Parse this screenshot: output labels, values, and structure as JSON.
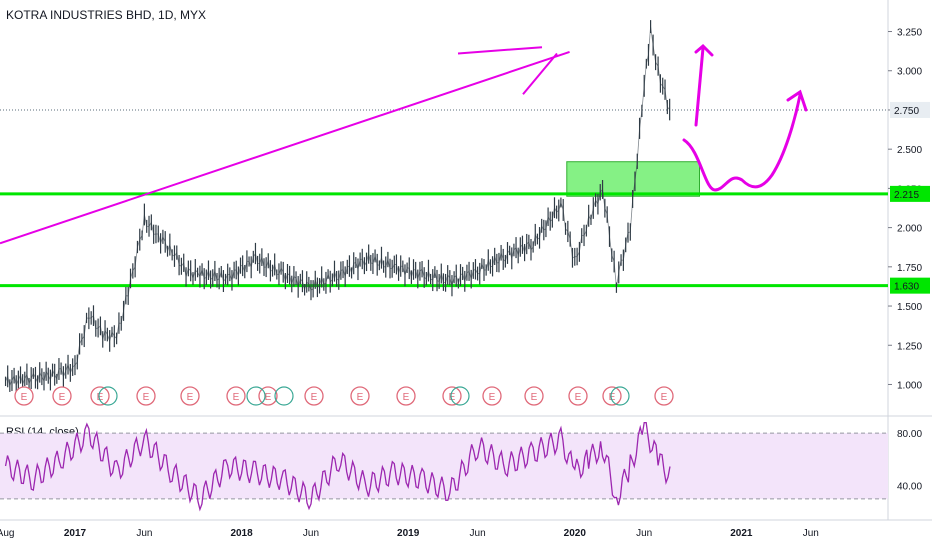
{
  "header": {
    "title": "KOTRA INDUSTRIES BHD, 1D, MYX"
  },
  "rsi": {
    "title": "RSI (14, close)"
  },
  "colors": {
    "candle": "#2f3b45",
    "support": "#00e600",
    "drawing": "#e600e6",
    "zone": "#66ee66",
    "rsi_line": "#9c27b0",
    "rsi_band": "#f3e4fa",
    "event": "#e06a7a",
    "dividend": "#3aa895"
  },
  "chart_data": [
    {
      "type": "line",
      "title": "KOTRA INDUSTRIES BHD, 1D, MYX",
      "ylim": [
        0.85,
        3.4
      ],
      "price_ticks": [
        "1.000",
        "1.250",
        "1.500",
        "1.750",
        "2.000",
        "2.250",
        "2.500",
        "2.750",
        "3.000",
        "3.250"
      ],
      "x_ticks": [
        "Aug",
        "2017",
        "Jun",
        "2018",
        "Jun",
        "2019",
        "Jun",
        "2020",
        "Jun",
        "2021",
        "Jun"
      ],
      "price_labels": {
        "current": "2.750",
        "resistance": "2.215",
        "support": "1.630"
      },
      "series": [
        {
          "values": [
            [
              "2016-08",
              1.02
            ],
            [
              "2016-10",
              1.04
            ],
            [
              "2016-12",
              1.07
            ],
            [
              "2017-01",
              1.12
            ],
            [
              "2017-02",
              1.45
            ],
            [
              "2017-03",
              1.32
            ],
            [
              "2017-04",
              1.3
            ],
            [
              "2017-05",
              1.65
            ],
            [
              "2017-06",
              2.05
            ],
            [
              "2017-07",
              1.95
            ],
            [
              "2017-08",
              1.85
            ],
            [
              "2017-09",
              1.72
            ],
            [
              "2017-10",
              1.7
            ],
            [
              "2017-12",
              1.68
            ],
            [
              "2018-02",
              1.8
            ],
            [
              "2018-04",
              1.7
            ],
            [
              "2018-06",
              1.62
            ],
            [
              "2018-08",
              1.7
            ],
            [
              "2018-10",
              1.8
            ],
            [
              "2018-12",
              1.75
            ],
            [
              "2019-02",
              1.7
            ],
            [
              "2019-04",
              1.66
            ],
            [
              "2019-06",
              1.72
            ],
            [
              "2019-08",
              1.82
            ],
            [
              "2019-10",
              1.9
            ],
            [
              "2019-12",
              2.15
            ],
            [
              "2020-01",
              1.78
            ],
            [
              "2020-02",
              2.05
            ],
            [
              "2020-03",
              2.25
            ],
            [
              "2020-04",
              1.65
            ],
            [
              "2020-05",
              2.0
            ],
            [
              "2020-06",
              2.9
            ],
            [
              "2020-06-15",
              3.25
            ],
            [
              "2020-07",
              3.0
            ],
            [
              "2020-08",
              2.7
            ]
          ]
        }
      ],
      "horizontal_levels": [
        2.215,
        1.63
      ],
      "zone": {
        "from": "2020-01",
        "to": "2020-12",
        "low": 2.2,
        "high": 2.42
      },
      "event_markers": [
        "E",
        "E",
        "E",
        "E",
        "E",
        "E",
        "E",
        "E",
        "E",
        "E",
        "E",
        "E",
        "E",
        "E",
        "E",
        "E"
      ]
    },
    {
      "type": "line",
      "title": "RSI (14, close)",
      "ylim": [
        20,
        90
      ],
      "ticks": [
        "80.00",
        "40.00"
      ],
      "bands": [
        30,
        80
      ],
      "series": [
        {
          "values": [
            [
              "2016-08",
              55
            ],
            [
              "2016-10",
              45
            ],
            [
              "2016-12",
              60
            ],
            [
              "2017-02",
              80
            ],
            [
              "2017-04",
              50
            ],
            [
              "2017-06",
              75
            ],
            [
              "2017-08",
              50
            ],
            [
              "2017-10",
              30
            ],
            [
              "2017-12",
              55
            ],
            [
              "2018-02",
              50
            ],
            [
              "2018-04",
              45
            ],
            [
              "2018-06",
              30
            ],
            [
              "2018-08",
              60
            ],
            [
              "2018-10",
              40
            ],
            [
              "2018-12",
              50
            ],
            [
              "2019-02",
              45
            ],
            [
              "2019-04",
              35
            ],
            [
              "2019-06",
              70
            ],
            [
              "2019-08",
              55
            ],
            [
              "2019-10",
              65
            ],
            [
              "2019-12",
              75
            ],
            [
              "2020-01",
              50
            ],
            [
              "2020-02",
              60
            ],
            [
              "2020-03",
              70
            ],
            [
              "2020-04",
              30
            ],
            [
              "2020-05",
              55
            ],
            [
              "2020-06",
              85
            ],
            [
              "2020-07",
              60
            ],
            [
              "2020-08",
              45
            ]
          ]
        }
      ]
    }
  ]
}
